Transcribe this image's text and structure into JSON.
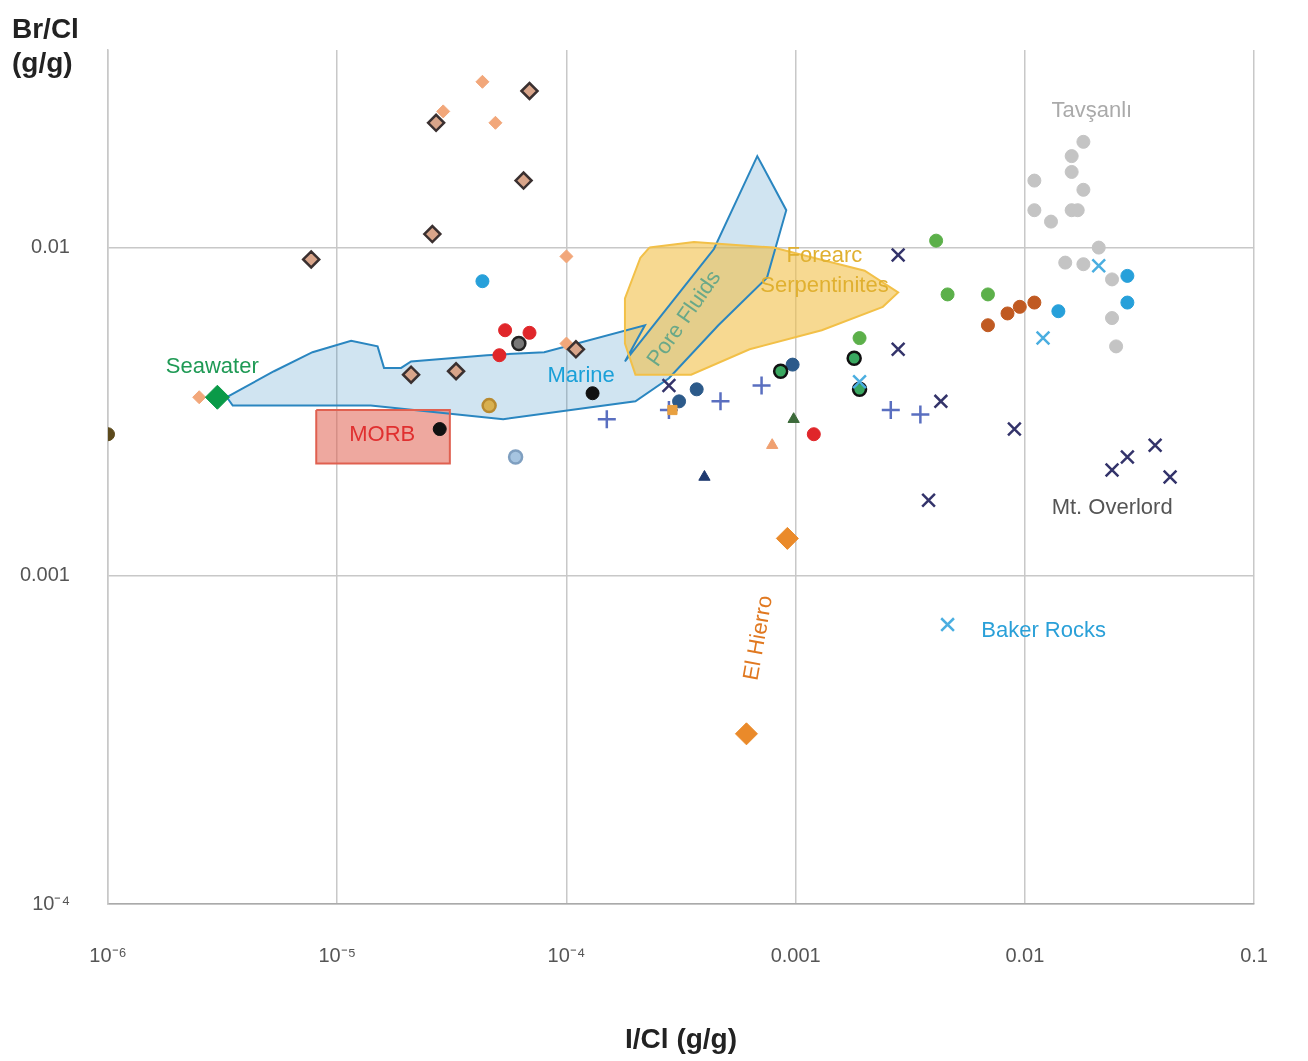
{
  "chart_data": {
    "type": "scatter",
    "xlabel": "I/Cl (g/g)",
    "ylabel": "Br/Cl (g/g)",
    "log": "xy",
    "grid": true,
    "xlim": [
      1e-06,
      0.1
    ],
    "ylim": [
      0.0001,
      0.04
    ],
    "xticks": [
      {
        "value": 1e-06,
        "label": "10⁻⁶"
      },
      {
        "value": 1e-05,
        "label": "10⁻⁵"
      },
      {
        "value": 0.0001,
        "label": "10⁻⁴"
      },
      0.001,
      0.01,
      0.1
    ],
    "yticks": [
      {
        "value": 0.0001,
        "label": "10⁻⁴"
      },
      0.001,
      0.01
    ],
    "series": [
      {
        "type": "area",
        "color": "#2a86c0",
        "x": [
          3.3e-06,
          3.8e-06,
          5.3e-06,
          7.8e-06,
          1.15e-05,
          1.5e-05,
          1.6e-05,
          1.9e-05,
          2.1e-05,
          4.5e-05,
          8e-05,
          0.00022,
          0.00018,
          0.00044,
          0.00068,
          0.00091,
          0.00075,
          0.00046,
          0.00028,
          0.0002,
          5.3e-05,
          1.4e-05,
          3.5e-06,
          3.3e-06
        ],
        "values": [
          0.0035,
          0.0037,
          0.0042,
          0.0048,
          0.0052,
          0.005,
          0.0043,
          0.0043,
          0.0045,
          0.0047,
          0.0048,
          0.0058,
          0.0045,
          0.0099,
          0.019,
          0.013,
          0.0081,
          0.0058,
          0.004,
          0.0034,
          0.003,
          0.0033,
          0.0033,
          0.0035
        ]
      },
      {
        "type": "area",
        "color": "#f2c048",
        "x": [
          0.00023,
          0.00036,
          0.0008,
          0.002,
          0.0028,
          0.0024,
          0.0013,
          0.00063,
          0.00035,
          0.0002,
          0.00018,
          0.00018,
          0.00021,
          0.00023
        ],
        "values": [
          0.01,
          0.0104,
          0.01,
          0.0085,
          0.0073,
          0.0066,
          0.0056,
          0.0049,
          0.0041,
          0.0041,
          0.0051,
          0.007,
          0.0093,
          0.01
        ]
      },
      {
        "type": "area",
        "color": "#e06050",
        "x": [
          8.1e-06,
          3.1e-05,
          3.1e-05,
          8.1e-06,
          8.1e-06
        ],
        "values": [
          0.0032,
          0.0032,
          0.0022,
          0.0022,
          0.0032
        ]
      },
      {
        "marker": "diamond",
        "color": "#f2a77a",
        "x": [
          4.3e-05,
          4.9e-05,
          2.9e-05,
          0.0001,
          2.5e-06,
          0.0001
        ],
        "values": [
          0.032,
          0.024,
          0.026,
          0.0094,
          0.0035,
          0.0051
        ]
      },
      {
        "marker": "diamond",
        "color": "#d9a58a",
        "x": [
          6.9e-05,
          2.7e-05,
          6.5e-05,
          2.6e-05,
          7.7e-06,
          2.1e-05,
          3.3e-05,
          0.00011
        ],
        "values": [
          0.03,
          0.024,
          0.016,
          0.011,
          0.0092,
          0.0041,
          0.0042,
          0.0049
        ]
      },
      {
        "marker": "circle",
        "color": "#777777",
        "x": [
          6.2e-05
        ],
        "values": [
          0.0051
        ]
      },
      {
        "marker": "diamond",
        "color": "#0a9a48",
        "x": [
          3e-06
        ],
        "values": [
          0.0035
        ]
      },
      {
        "marker": "circle",
        "color": "#5c4a1c",
        "x": [
          1e-06
        ],
        "values": [
          0.0027
        ]
      },
      {
        "marker": "circle",
        "color": "#e0262a",
        "x": [
          5.4e-05,
          6.9e-05,
          5.1e-05,
          0.0012
        ],
        "values": [
          0.0056,
          0.0055,
          0.0047,
          0.0027
        ]
      },
      {
        "marker": "circle",
        "color": "#27a0da",
        "x": [
          4.3e-05,
          0.028,
          0.028,
          0.014
        ],
        "values": [
          0.0079,
          0.0082,
          0.0068,
          0.0064
        ]
      },
      {
        "marker": "circle",
        "color": "#d8b050",
        "x": [
          4.6e-05
        ],
        "values": [
          0.0033
        ]
      },
      {
        "marker": "circle",
        "color": "#a6c4e0",
        "x": [
          6e-05
        ],
        "values": [
          0.0023
        ]
      },
      {
        "marker": "circle",
        "color": "#111111",
        "x": [
          2.8e-05,
          0.00013
        ],
        "values": [
          0.0028,
          0.0036
        ]
      },
      {
        "marker": "circle",
        "color": "#2c5a8a",
        "x": [
          0.00031,
          0.00037,
          0.00097
        ],
        "values": [
          0.0034,
          0.0037,
          0.0044
        ]
      },
      {
        "marker": "circle",
        "color": "#3aa860",
        "x": [
          0.00086,
          0.0018,
          0.0019
        ],
        "values": [
          0.0042,
          0.0046,
          0.0037
        ]
      },
      {
        "marker": "circle",
        "color": "#5cb04a",
        "x": [
          0.0041,
          0.0046,
          0.0069,
          0.0019
        ],
        "values": [
          0.0105,
          0.0072,
          0.0072,
          0.0053
        ]
      },
      {
        "marker": "circle",
        "color": "#c05a22",
        "x": [
          0.0069,
          0.0084,
          0.0095,
          0.011
        ],
        "values": [
          0.0058,
          0.0063,
          0.0066,
          0.0068
        ]
      },
      {
        "marker": "circle",
        "color": "#c4c4c4",
        "x": [
          0.018,
          0.016,
          0.011,
          0.016,
          0.018,
          0.011,
          0.013,
          0.016,
          0.017,
          0.021,
          0.015,
          0.018,
          0.024,
          0.024,
          0.025
        ],
        "values": [
          0.021,
          0.019,
          0.016,
          0.017,
          0.015,
          0.013,
          0.012,
          0.013,
          0.013,
          0.01,
          0.009,
          0.0089,
          0.008,
          0.0061,
          0.005
        ]
      },
      {
        "marker": "x",
        "color": "#33336a",
        "x": [
          0.0028,
          0.0028,
          0.00028,
          0.0043,
          0.009,
          0.0038,
          0.024,
          0.028,
          0.037,
          0.043
        ],
        "values": [
          0.0095,
          0.0049,
          0.0038,
          0.0034,
          0.0028,
          0.0017,
          0.0021,
          0.0023,
          0.0025,
          0.002
        ]
      },
      {
        "marker": "x",
        "color": "#4aaee0",
        "x": [
          0.021,
          0.012,
          0.0019,
          0.0046
        ],
        "values": [
          0.0088,
          0.0053,
          0.0039,
          0.00071
        ]
      },
      {
        "marker": "cross",
        "color": "#5a6fc0",
        "x": [
          0.00015,
          0.00028,
          0.00047,
          0.00071,
          0.0026,
          0.0035
        ],
        "values": [
          0.003,
          0.0032,
          0.0034,
          0.0038,
          0.0032,
          0.0031
        ]
      },
      {
        "marker": "square",
        "color": "#e8a040",
        "x": [
          0.00029
        ],
        "values": [
          0.0032
        ]
      },
      {
        "marker": "triangle",
        "color": "#1f3a70",
        "x": [
          0.0004
        ],
        "values": [
          0.002
        ]
      },
      {
        "marker": "triangle",
        "color": "#3c6a3a",
        "x": [
          0.00098
        ],
        "values": [
          0.003
        ]
      },
      {
        "marker": "triangle",
        "color": "#f0a070",
        "x": [
          0.00079
        ],
        "values": [
          0.0025
        ]
      },
      {
        "marker": "diamond",
        "color": "#ea8a2a",
        "x": [
          0.00092,
          0.00061
        ],
        "values": [
          0.0013,
          0.00033
        ]
      }
    ],
    "annotations": [
      "Seawater",
      "Marine",
      "Pore Fluids",
      "Forearc Serpentinites",
      "MORB",
      "El Hierro",
      "Baker Rocks",
      "Mt. Overlord",
      "Tavşanlı"
    ]
  }
}
